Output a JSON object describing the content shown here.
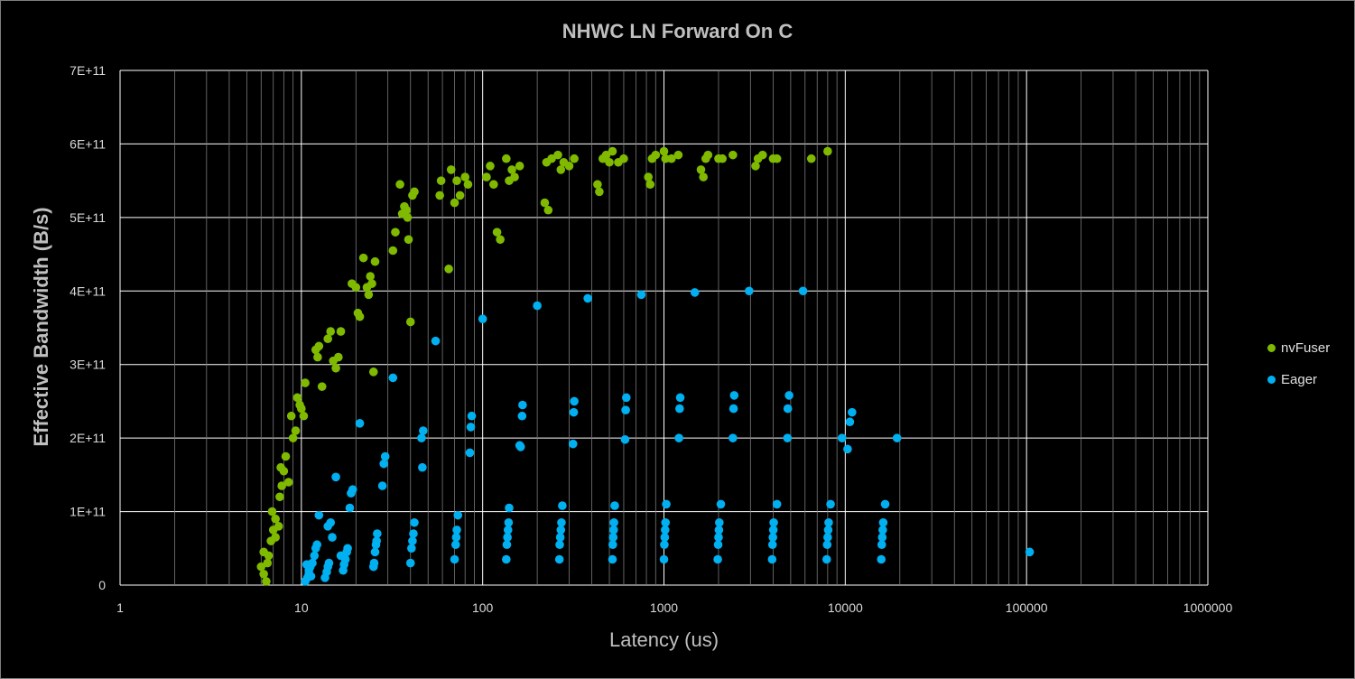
{
  "chart_data": {
    "type": "scatter",
    "title": "NHWC LN Forward On C",
    "xlabel": "Latency (us)",
    "ylabel": "Effective Bandwidth (B/s)",
    "xscale": "log",
    "xlim": [
      1,
      1000000
    ],
    "ylim": [
      0,
      700000000000
    ],
    "x_ticks": [
      1,
      10,
      100,
      1000,
      10000,
      100000,
      1000000
    ],
    "x_tick_labels": [
      "1",
      "10",
      "100",
      "1000",
      "10000",
      "100000",
      "1000000"
    ],
    "y_ticks": [
      0,
      100000000000,
      200000000000,
      300000000000,
      400000000000,
      500000000000,
      600000000000,
      700000000000
    ],
    "y_tick_labels": [
      "0",
      "1E+11",
      "2E+11",
      "3E+11",
      "4E+11",
      "5E+11",
      "6E+11",
      "7E+11"
    ],
    "grid": true,
    "legend_position": "right",
    "colors": {
      "background": "#000000",
      "grid": "#ffffff",
      "text": "#bfbfbf"
    },
    "series": [
      {
        "name": "nvFuser",
        "color": "#7fba00",
        "points": [
          [
            6,
            25000000000.0
          ],
          [
            6.2,
            15000000000.0
          ],
          [
            6.4,
            5000000000.0
          ],
          [
            6.5,
            30000000000.0
          ],
          [
            6.2,
            45000000000.0
          ],
          [
            6.6,
            40000000000.0
          ],
          [
            6.8,
            60000000000.0
          ],
          [
            7,
            75000000000.0
          ],
          [
            7.2,
            90000000000.0
          ],
          [
            6.9,
            100000000000.0
          ],
          [
            7.5,
            80000000000.0
          ],
          [
            7.2,
            65000000000.0
          ],
          [
            7.6,
            120000000000.0
          ],
          [
            7.8,
            135000000000.0
          ],
          [
            7.7,
            160000000000.0
          ],
          [
            8,
            155000000000.0
          ],
          [
            8.2,
            175000000000.0
          ],
          [
            8.5,
            140000000000.0
          ],
          [
            8.8,
            230000000000.0
          ],
          [
            9,
            200000000000.0
          ],
          [
            9.3,
            210000000000.0
          ],
          [
            9.5,
            255000000000.0
          ],
          [
            9.8,
            245000000000.0
          ],
          [
            10,
            240000000000.0
          ],
          [
            10.3,
            230000000000.0
          ],
          [
            10.5,
            275000000000.0
          ],
          [
            12,
            320000000000.0
          ],
          [
            12.3,
            310000000000.0
          ],
          [
            12.5,
            325000000000.0
          ],
          [
            13,
            270000000000.0
          ],
          [
            14,
            335000000000.0
          ],
          [
            14.5,
            345000000000.0
          ],
          [
            15,
            305000000000.0
          ],
          [
            15.5,
            295000000000.0
          ],
          [
            16,
            310000000000.0
          ],
          [
            16.5,
            345000000000.0
          ],
          [
            19,
            410000000000.0
          ],
          [
            20,
            405000000000.0
          ],
          [
            20.5,
            370000000000.0
          ],
          [
            21,
            365000000000.0
          ],
          [
            22,
            445000000000.0
          ],
          [
            23,
            405000000000.0
          ],
          [
            24,
            420000000000.0
          ],
          [
            24.5,
            410000000000.0
          ],
          [
            23.5,
            395000000000.0
          ],
          [
            25,
            290000000000.0
          ],
          [
            25.5,
            440000000000.0
          ],
          [
            32,
            455000000000.0
          ],
          [
            33,
            480000000000.0
          ],
          [
            35,
            545000000000.0
          ],
          [
            36,
            505000000000.0
          ],
          [
            37,
            515000000000.0
          ],
          [
            38,
            510000000000.0
          ],
          [
            38.5,
            500000000000.0
          ],
          [
            39,
            470000000000.0
          ],
          [
            40,
            358000000000.0
          ],
          [
            41,
            530000000000.0
          ],
          [
            42,
            535000000000.0
          ],
          [
            58,
            530000000000.0
          ],
          [
            59,
            550000000000.0
          ],
          [
            65,
            430000000000.0
          ],
          [
            67,
            565000000000.0
          ],
          [
            70,
            520000000000.0
          ],
          [
            72,
            550000000000.0
          ],
          [
            75,
            530000000000.0
          ],
          [
            80,
            555000000000.0
          ],
          [
            83,
            545000000000.0
          ],
          [
            105,
            555000000000.0
          ],
          [
            110,
            570000000000.0
          ],
          [
            115,
            545000000000.0
          ],
          [
            120,
            480000000000.0
          ],
          [
            125,
            470000000000.0
          ],
          [
            135,
            580000000000.0
          ],
          [
            140,
            550000000000.0
          ],
          [
            145,
            565000000000.0
          ],
          [
            150,
            555000000000.0
          ],
          [
            160,
            570000000000.0
          ],
          [
            220,
            520000000000.0
          ],
          [
            225,
            575000000000.0
          ],
          [
            230,
            510000000000.0
          ],
          [
            240,
            580000000000.0
          ],
          [
            260,
            585000000000.0
          ],
          [
            270,
            565000000000.0
          ],
          [
            280,
            575000000000.0
          ],
          [
            300,
            570000000000.0
          ],
          [
            320,
            580000000000.0
          ],
          [
            430,
            545000000000.0
          ],
          [
            440,
            535000000000.0
          ],
          [
            460,
            580000000000.0
          ],
          [
            480,
            585000000000.0
          ],
          [
            500,
            575000000000.0
          ],
          [
            520,
            590000000000.0
          ],
          [
            560,
            575000000000.0
          ],
          [
            600,
            580000000000.0
          ],
          [
            820,
            555000000000.0
          ],
          [
            840,
            545000000000.0
          ],
          [
            860,
            580000000000.0
          ],
          [
            900,
            585000000000.0
          ],
          [
            1000,
            590000000000.0
          ],
          [
            1020,
            580000000000.0
          ],
          [
            1100,
            580000000000.0
          ],
          [
            1200,
            585000000000.0
          ],
          [
            1600,
            565000000000.0
          ],
          [
            1650,
            555000000000.0
          ],
          [
            1700,
            580000000000.0
          ],
          [
            1750,
            585000000000.0
          ],
          [
            2000,
            580000000000.0
          ],
          [
            2100,
            580000000000.0
          ],
          [
            2400,
            585000000000.0
          ],
          [
            3200,
            570000000000.0
          ],
          [
            3300,
            580000000000.0
          ],
          [
            3500,
            585000000000.0
          ],
          [
            4000,
            580000000000.0
          ],
          [
            4200,
            580000000000.0
          ],
          [
            6500,
            580000000000.0
          ],
          [
            8000,
            590000000000.0
          ]
        ]
      },
      {
        "name": "Eager",
        "color": "#00b0f0",
        "points": [
          [
            10.5,
            5000000000.0
          ],
          [
            10.8,
            10000000000.0
          ],
          [
            11,
            15000000000.0
          ],
          [
            11.2,
            25000000000.0
          ],
          [
            11.5,
            30000000000.0
          ],
          [
            11.8,
            40000000000.0
          ],
          [
            12,
            50000000000.0
          ],
          [
            12.2,
            55000000000.0
          ],
          [
            11,
            20000000000.0
          ],
          [
            10.7,
            28000000000.0
          ],
          [
            11.3,
            12000000000.0
          ],
          [
            12.5,
            95000000000.0
          ],
          [
            13.5,
            10000000000.0
          ],
          [
            14,
            25000000000.0
          ],
          [
            14.2,
            30000000000.0
          ],
          [
            14.5,
            85000000000.0
          ],
          [
            14,
            80000000000.0
          ],
          [
            14.8,
            65000000000.0
          ],
          [
            15.5,
            147000000000.0
          ],
          [
            13.8,
            18000000000.0
          ],
          [
            17,
            20000000000.0
          ],
          [
            17.2,
            28000000000.0
          ],
          [
            17.5,
            35000000000.0
          ],
          [
            17.8,
            45000000000.0
          ],
          [
            18,
            50000000000.0
          ],
          [
            18.5,
            105000000000.0
          ],
          [
            18.8,
            125000000000.0
          ],
          [
            19.2,
            130000000000.0
          ],
          [
            21,
            220000000000.0
          ],
          [
            16.5,
            40000000000.0
          ],
          [
            25,
            25000000000.0
          ],
          [
            25.2,
            30000000000.0
          ],
          [
            25.5,
            45000000000.0
          ],
          [
            25.8,
            55000000000.0
          ],
          [
            26,
            60000000000.0
          ],
          [
            26.2,
            70000000000.0
          ],
          [
            28,
            135000000000.0
          ],
          [
            28.5,
            165000000000.0
          ],
          [
            29,
            175000000000.0
          ],
          [
            32,
            282000000000.0
          ],
          [
            40,
            30000000000.0
          ],
          [
            40.5,
            50000000000.0
          ],
          [
            41,
            60000000000.0
          ],
          [
            41.5,
            70000000000.0
          ],
          [
            42,
            85000000000.0
          ],
          [
            46,
            200000000000.0
          ],
          [
            47,
            210000000000.0
          ],
          [
            46.5,
            160000000000.0
          ],
          [
            55,
            332000000000.0
          ],
          [
            70,
            35000000000.0
          ],
          [
            71,
            55000000000.0
          ],
          [
            71.5,
            65000000000.0
          ],
          [
            72,
            75000000000.0
          ],
          [
            73,
            95000000000.0
          ],
          [
            85,
            180000000000.0
          ],
          [
            86,
            215000000000.0
          ],
          [
            87,
            230000000000.0
          ],
          [
            100,
            362000000000.0
          ],
          [
            135,
            35000000000.0
          ],
          [
            136,
            55000000000.0
          ],
          [
            137,
            65000000000.0
          ],
          [
            138,
            75000000000.0
          ],
          [
            139,
            85000000000.0
          ],
          [
            140,
            105000000000.0
          ],
          [
            160,
            190000000000.0
          ],
          [
            162,
            188000000000.0
          ],
          [
            165,
            230000000000.0
          ],
          [
            166,
            245000000000.0
          ],
          [
            200,
            380000000000.0
          ],
          [
            265,
            35000000000.0
          ],
          [
            266,
            55000000000.0
          ],
          [
            268,
            65000000000.0
          ],
          [
            270,
            75000000000.0
          ],
          [
            272,
            85000000000.0
          ],
          [
            275,
            108000000000.0
          ],
          [
            315,
            192000000000.0
          ],
          [
            318,
            235000000000.0
          ],
          [
            320,
            250000000000.0
          ],
          [
            380,
            390000000000.0
          ],
          [
            520,
            35000000000.0
          ],
          [
            522,
            55000000000.0
          ],
          [
            525,
            65000000000.0
          ],
          [
            528,
            75000000000.0
          ],
          [
            530,
            85000000000.0
          ],
          [
            535,
            108000000000.0
          ],
          [
            610,
            198000000000.0
          ],
          [
            615,
            238000000000.0
          ],
          [
            620,
            255000000000.0
          ],
          [
            750,
            395000000000.0
          ],
          [
            1000,
            35000000000.0
          ],
          [
            1005,
            55000000000.0
          ],
          [
            1010,
            65000000000.0
          ],
          [
            1015,
            75000000000.0
          ],
          [
            1020,
            85000000000.0
          ],
          [
            1030,
            110000000000.0
          ],
          [
            1210,
            200000000000.0
          ],
          [
            1220,
            240000000000.0
          ],
          [
            1230,
            255000000000.0
          ],
          [
            1480,
            398000000000.0
          ],
          [
            1980,
            35000000000.0
          ],
          [
            1990,
            55000000000.0
          ],
          [
            2000,
            65000000000.0
          ],
          [
            2010,
            75000000000.0
          ],
          [
            2020,
            85000000000.0
          ],
          [
            2060,
            110000000000.0
          ],
          [
            2400,
            200000000000.0
          ],
          [
            2420,
            240000000000.0
          ],
          [
            2440,
            258000000000.0
          ],
          [
            2950,
            400000000000.0
          ],
          [
            3950,
            35000000000.0
          ],
          [
            3970,
            55000000000.0
          ],
          [
            3990,
            65000000000.0
          ],
          [
            4010,
            75000000000.0
          ],
          [
            4030,
            85000000000.0
          ],
          [
            4200,
            110000000000.0
          ],
          [
            4800,
            200000000000.0
          ],
          [
            4820,
            240000000000.0
          ],
          [
            4900,
            258000000000.0
          ],
          [
            5850,
            400000000000.0
          ],
          [
            7900,
            35000000000.0
          ],
          [
            7950,
            55000000000.0
          ],
          [
            8000,
            65000000000.0
          ],
          [
            8050,
            75000000000.0
          ],
          [
            8100,
            85000000000.0
          ],
          [
            8300,
            110000000000.0
          ],
          [
            9600,
            200000000000.0
          ],
          [
            10300,
            185000000000.0
          ],
          [
            10600,
            222000000000.0
          ],
          [
            10900,
            235000000000.0
          ],
          [
            15800,
            35000000000.0
          ],
          [
            15900,
            55000000000.0
          ],
          [
            16000,
            65000000000.0
          ],
          [
            16100,
            75000000000.0
          ],
          [
            16200,
            85000000000.0
          ],
          [
            16600,
            110000000000.0
          ],
          [
            19300,
            200000000000.0
          ],
          [
            104000,
            45000000000.0
          ]
        ]
      }
    ]
  }
}
